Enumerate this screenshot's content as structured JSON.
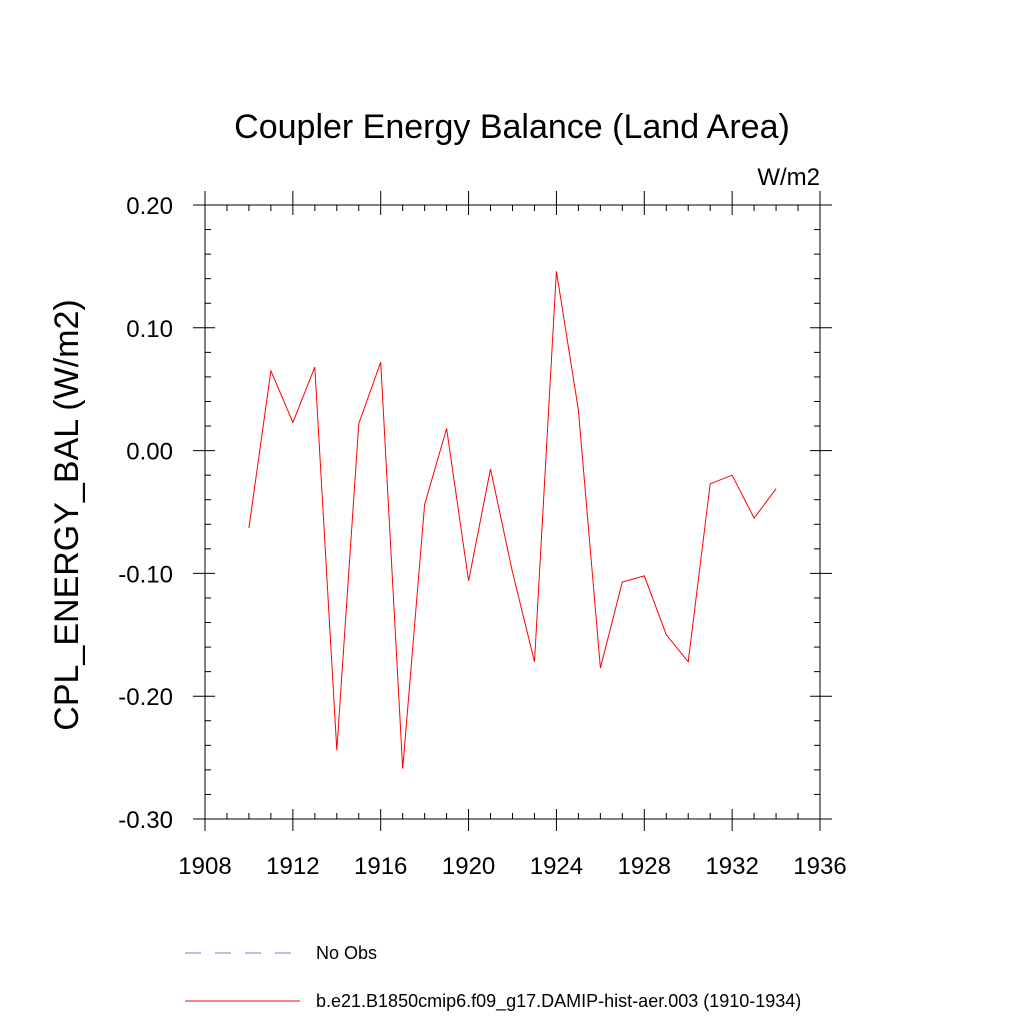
{
  "chart_data": {
    "type": "line",
    "title": "Coupler Energy Balance (Land Area)",
    "units": "W/m2",
    "ylabel": "CPL_ENERGY_BAL  (W/m2)",
    "xlabel": "",
    "xlim": [
      1908,
      1936
    ],
    "ylim": [
      -0.3,
      0.2
    ],
    "x_ticks": [
      1908,
      1912,
      1916,
      1920,
      1924,
      1928,
      1932,
      1936
    ],
    "y_ticks": [
      0.2,
      0.1,
      0.0,
      -0.1,
      -0.2,
      -0.3
    ],
    "y_tick_labels": [
      "0.20",
      "0.10",
      "0.00",
      "-0.10",
      "-0.20",
      "-0.30"
    ],
    "grid": false,
    "legend_position": "bottom",
    "series": [
      {
        "name": "b.e21.B1850cmip6.f09_g17.DAMIP-hist-aer.003 (1910-1934)",
        "color": "#ff0000",
        "dash": "solid",
        "x": [
          1910,
          1911,
          1912,
          1913,
          1914,
          1915,
          1916,
          1917,
          1918,
          1919,
          1920,
          1921,
          1922,
          1923,
          1924,
          1925,
          1926,
          1927,
          1928,
          1929,
          1930,
          1931,
          1932,
          1933,
          1934
        ],
        "y": [
          -0.063,
          0.065,
          0.023,
          0.068,
          -0.244,
          0.022,
          0.072,
          -0.259,
          -0.044,
          0.018,
          -0.106,
          -0.015,
          -0.099,
          -0.172,
          0.146,
          0.033,
          -0.177,
          -0.107,
          -0.102,
          -0.15,
          -0.172,
          -0.027,
          -0.02,
          -0.055,
          -0.031
        ]
      }
    ],
    "legend": [
      {
        "label": "No Obs",
        "color": "#7a78c8",
        "dash": "dashed"
      },
      {
        "label": "b.e21.B1850cmip6.f09_g17.DAMIP-hist-aer.003 (1910-1934)",
        "color": "#ff0000",
        "dash": "solid"
      }
    ]
  }
}
